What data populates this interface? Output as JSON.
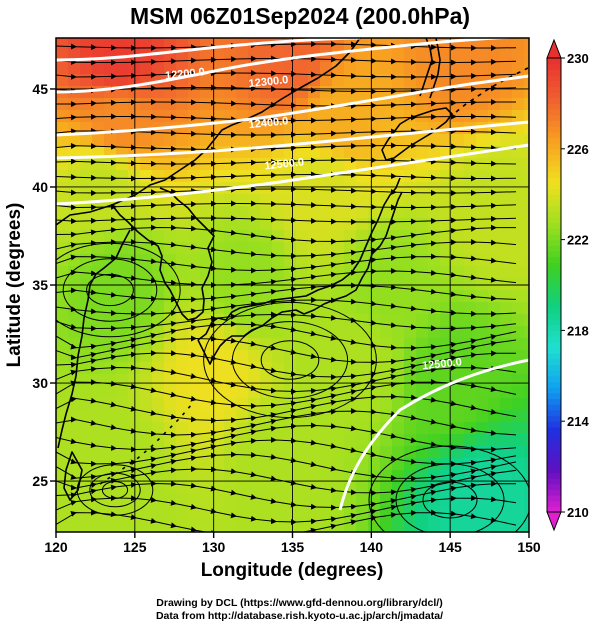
{
  "chart_data": {
    "type": "heatmap",
    "title": "MSM 06Z01Sep2024 (200.0hPa)",
    "xlabel": "Longitude (degrees)",
    "ylabel": "Latitude  (degrees)",
    "xlim": [
      120,
      150
    ],
    "ylim": [
      22.4,
      47.6
    ],
    "xticks": [
      120,
      125,
      130,
      135,
      140,
      145,
      150
    ],
    "yticks": [
      25,
      30,
      35,
      40,
      45
    ],
    "grid": true,
    "colorbar": {
      "min": 210,
      "max": 230,
      "ticks": [
        210,
        214,
        218,
        222,
        226,
        230
      ],
      "colors": [
        "#e020d0",
        "#6010c0",
        "#2030e0",
        "#10a0f0",
        "#20e0d0",
        "#10d080",
        "#40d020",
        "#a0e020",
        "#f0e020",
        "#f8a020",
        "#f06030",
        "#e83030"
      ],
      "extend": "both"
    },
    "contours": [
      {
        "label": "12200.0",
        "lon": 128.2,
        "lat": 45.6
      },
      {
        "label": "12300.0",
        "lon": 133.5,
        "lat": 45.2
      },
      {
        "label": "12400.0",
        "lon": 133.5,
        "lat": 43.1
      },
      {
        "label": "12500.0",
        "lon": 134.5,
        "lat": 41.0
      },
      {
        "label": "12500.0",
        "lon": 144.5,
        "lat": 30.8
      }
    ],
    "temperature_field": [
      {
        "lon": 124,
        "lat": 46.5,
        "t": 229.5
      },
      {
        "lon": 135,
        "lat": 46.5,
        "t": 228.0
      },
      {
        "lon": 146,
        "lat": 46.5,
        "t": 227.0
      },
      {
        "lon": 124,
        "lat": 43.5,
        "t": 227.0
      },
      {
        "lon": 138,
        "lat": 43.5,
        "t": 226.0
      },
      {
        "lon": 123,
        "lat": 40,
        "t": 223.5
      },
      {
        "lon": 137,
        "lat": 40,
        "t": 224.0
      },
      {
        "lon": 148,
        "lat": 39,
        "t": 223.5
      },
      {
        "lon": 124,
        "lat": 35,
        "t": 222.0
      },
      {
        "lon": 132,
        "lat": 35,
        "t": 222.5
      },
      {
        "lon": 141,
        "lat": 35,
        "t": 222.5
      },
      {
        "lon": 130,
        "lat": 30.5,
        "t": 224.5
      },
      {
        "lon": 139,
        "lat": 31,
        "t": 223.0
      },
      {
        "lon": 145,
        "lat": 30,
        "t": 221.5
      },
      {
        "lon": 124,
        "lat": 25,
        "t": 223.0
      },
      {
        "lon": 134,
        "lat": 26,
        "t": 223.0
      },
      {
        "lon": 147,
        "lat": 24,
        "t": 218.5
      }
    ]
  },
  "credits": {
    "line1": "Drawing by DCL (https://www.gfd-dennou.org/library/dcl/)",
    "line2": "Data from http://database.rish.kyoto-u.ac.jp/arch/jmadata/"
  }
}
